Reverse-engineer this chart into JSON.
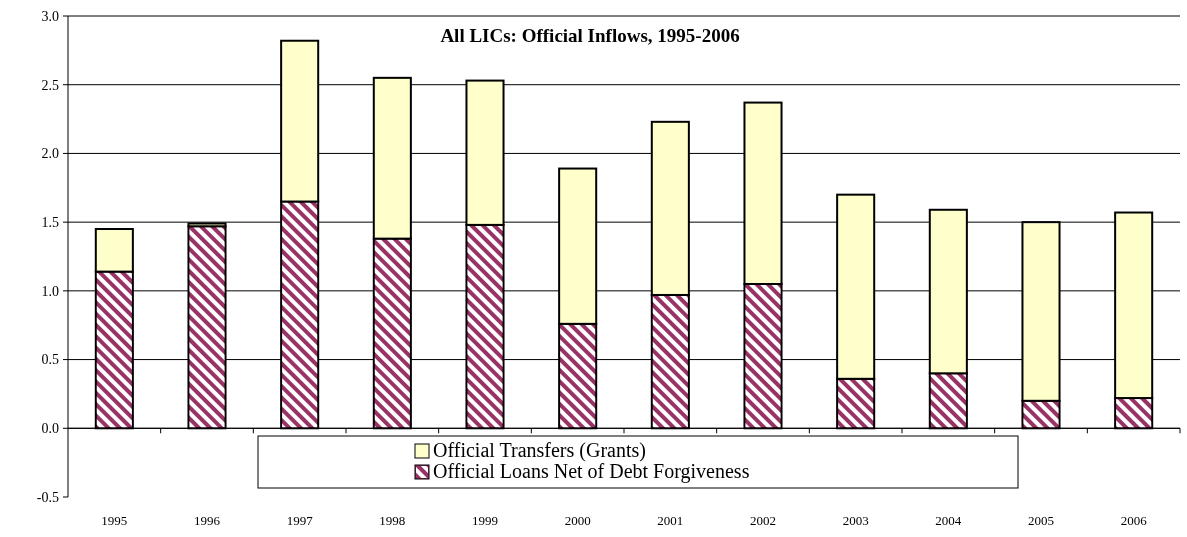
{
  "chart_data": {
    "type": "bar",
    "title": "All LICs: Official Inflows, 1995-2006",
    "categories": [
      "1995",
      "1996",
      "1997",
      "1998",
      "1999",
      "2000",
      "2001",
      "2002",
      "2003",
      "2004",
      "2005",
      "2006"
    ],
    "stacked": true,
    "series": [
      {
        "name": "Official Loans Net of Debt Forgiveness",
        "color": "#993366",
        "values": [
          1.14,
          1.47,
          1.65,
          1.38,
          1.48,
          0.76,
          0.97,
          1.05,
          0.36,
          0.4,
          0.2,
          0.22
        ]
      },
      {
        "name": "Official Transfers (Grants)",
        "color": "#ffffcc",
        "values": [
          0.31,
          0.02,
          1.17,
          1.17,
          1.05,
          1.13,
          1.26,
          1.32,
          1.34,
          1.19,
          1.3,
          1.35
        ]
      }
    ],
    "ylim": [
      -0.5,
      3
    ],
    "yticks": [
      {
        "value": -0.5,
        "label": "-0.5"
      },
      {
        "value": 0,
        "label": "0.0"
      },
      {
        "value": 0.5,
        "label": "0.5"
      },
      {
        "value": 1,
        "label": "1.0"
      },
      {
        "value": 1.5,
        "label": "1.5"
      },
      {
        "value": 2,
        "label": "2.0"
      },
      {
        "value": 2.5,
        "label": "2.5"
      },
      {
        "value": 3,
        "label": "3.0"
      }
    ],
    "grid": "y",
    "legend": "bottom"
  }
}
